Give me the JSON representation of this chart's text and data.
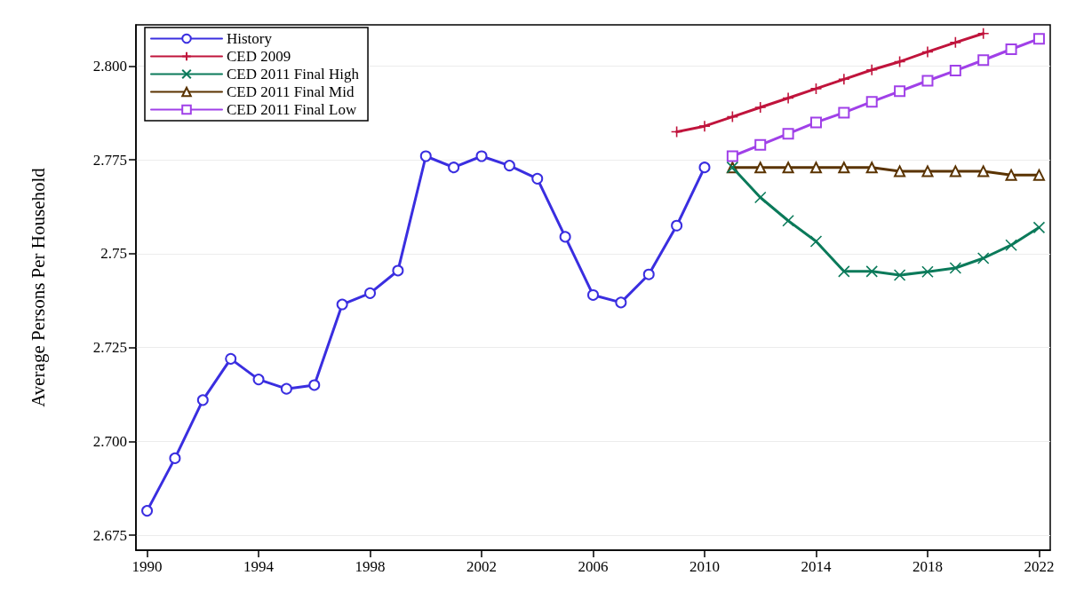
{
  "chart_data": {
    "type": "line",
    "ylabel": "Average Persons Per Household",
    "xlim": [
      1989.6,
      2022.4
    ],
    "xticks": [
      1990,
      1994,
      1998,
      2002,
      2006,
      2010,
      2014,
      2018,
      2022
    ],
    "ylim": [
      2.671,
      2.811
    ],
    "yticks": [
      2.675,
      {
        "value": 2.7,
        "label": "2.700"
      },
      2.725,
      2.75,
      2.775,
      {
        "value": 2.8,
        "label": "2.800"
      }
    ],
    "grid": "y",
    "legend": "top left",
    "line_style": "solid",
    "series": [
      {
        "name": "History",
        "color": "#3a2ee0",
        "marker": "circle",
        "x": [
          1990,
          1991,
          1992,
          1993,
          1994,
          1995,
          1996,
          1997,
          1998,
          1999,
          2000,
          2001,
          2002,
          2003,
          2004,
          2005,
          2006,
          2007,
          2008,
          2009,
          2010
        ],
        "values": [
          2.6815,
          2.6955,
          2.711,
          2.722,
          2.7165,
          2.714,
          2.715,
          2.7365,
          2.7395,
          2.7455,
          2.776,
          2.773,
          2.776,
          2.7735,
          2.77,
          2.7545,
          2.739,
          2.737,
          2.7445,
          2.7575,
          2.773
        ]
      },
      {
        "name": "CED 2009",
        "color": "#c0143c",
        "marker": "cross",
        "x": [
          2009,
          2010,
          2011,
          2012,
          2013,
          2014,
          2015,
          2016,
          2017,
          2018,
          2019,
          2020
        ],
        "values": [
          2.7825,
          2.784,
          2.7865,
          2.789,
          2.7915,
          2.794,
          2.7965,
          2.799,
          2.8012,
          2.8038,
          2.8063,
          2.8087
        ]
      },
      {
        "name": "CED 2011 Final High",
        "color": "#0b7a5a",
        "marker": "x",
        "x": [
          2011,
          2012,
          2013,
          2014,
          2015,
          2016,
          2017,
          2018,
          2019,
          2020,
          2021,
          2022
        ],
        "values": [
          2.773,
          2.765,
          2.7588,
          2.7533,
          2.7453,
          2.7453,
          2.7443,
          2.7452,
          2.7462,
          2.7488,
          2.7523,
          2.757
        ]
      },
      {
        "name": "CED 2011 Final Mid",
        "color": "#5a3300",
        "marker": "triangle",
        "x": [
          2011,
          2012,
          2013,
          2014,
          2015,
          2016,
          2017,
          2018,
          2019,
          2020,
          2021,
          2022
        ],
        "values": [
          2.773,
          2.773,
          2.773,
          2.773,
          2.773,
          2.773,
          2.772,
          2.772,
          2.772,
          2.772,
          2.771,
          2.771
        ]
      },
      {
        "name": "CED 2011 Final Low",
        "color": "#a040e8",
        "marker": "square",
        "x": [
          2011,
          2012,
          2013,
          2014,
          2015,
          2016,
          2017,
          2018,
          2019,
          2020,
          2021,
          2022
        ],
        "values": [
          2.776,
          2.779,
          2.782,
          2.785,
          2.7876,
          2.7905,
          2.7933,
          2.7961,
          2.7988,
          2.8016,
          2.8045,
          2.8073
        ]
      }
    ]
  }
}
